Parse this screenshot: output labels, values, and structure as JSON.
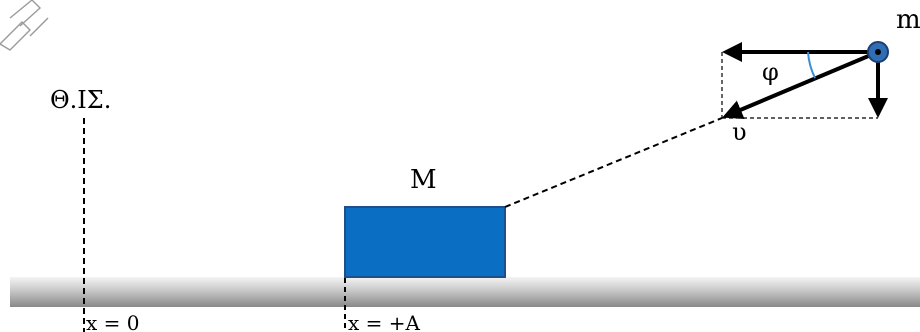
{
  "labels": {
    "mass_small": "m",
    "equilibrium": "Θ.ΙΣ.",
    "mass_block": "M",
    "angle": "φ",
    "velocity": "υ",
    "x_zero": "x = 0",
    "x_amplitude": "x = +A"
  },
  "colors": {
    "block_fill": "#0a6fc2",
    "block_stroke": "#1f4f8a",
    "ball_fill": "#2f6db4",
    "ground_light": "#e6e6e6",
    "ground_dark": "#8e8e8e",
    "angle_arc": "#3a8fd6"
  }
}
